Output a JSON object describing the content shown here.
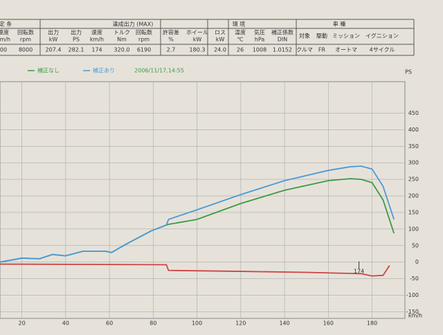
{
  "table": {
    "groups": [
      "定 条",
      "達成出力 (MAX)",
      "環 境",
      "車 種"
    ],
    "headers": [
      [
        "速度",
        "km/h"
      ],
      [
        "回転数",
        "rpm"
      ],
      [
        "出力",
        "kW"
      ],
      [
        "出力",
        "PS"
      ],
      [
        "速度",
        "km/h"
      ],
      [
        "トルク",
        "Nm"
      ],
      [
        "回転数",
        "rpm"
      ],
      [
        "許容差",
        "%"
      ],
      [
        "ホイール",
        "kW"
      ],
      [
        "ロス",
        "kW"
      ],
      [
        "温度",
        "℃"
      ],
      [
        "気圧",
        "hPa"
      ],
      [
        "補正係数",
        "DIN"
      ],
      [
        "対象"
      ],
      [
        "駆動"
      ],
      [
        "ミッション"
      ],
      [
        "イグニション"
      ]
    ],
    "row": [
      "00",
      "8000",
      "207.4",
      "282.1",
      "174",
      "320.0",
      "6190",
      "2.7",
      "180.3",
      "24.0",
      "26",
      "1008",
      "1.0152",
      "クルマ",
      "FR",
      "オートマ",
      "4サイクル"
    ]
  },
  "chart_data": {
    "type": "line",
    "subtitle": "2006/11/17,14:55",
    "x_label": "km/h",
    "y_label": "PS",
    "xlim": [
      10,
      195
    ],
    "xticks": [
      20,
      40,
      60,
      80,
      100,
      120,
      140,
      160,
      180
    ],
    "ylim": [
      -170,
      545
    ],
    "yticks": [
      -150,
      -100,
      -50,
      0,
      50,
      100,
      150,
      200,
      250,
      300,
      350,
      400,
      450
    ],
    "grid": true,
    "series": [
      {
        "name": "補正なし",
        "color": "#3a9a44",
        "x": [
          10,
          20,
          28,
          34,
          40,
          48,
          58,
          61,
          67,
          79,
          86,
          87,
          100,
          120,
          140,
          160,
          170,
          175,
          180,
          185,
          190
        ],
        "values": [
          0,
          12,
          10,
          23,
          19,
          33,
          33,
          29,
          52,
          94,
          112,
          114,
          129,
          177,
          217,
          246,
          252,
          250,
          240,
          188,
          87
        ]
      },
      {
        "name": "補正あり",
        "color": "#4a9ad6",
        "x": [
          10,
          20,
          28,
          34,
          40,
          48,
          58,
          61,
          67,
          79,
          86,
          87,
          100,
          120,
          140,
          160,
          170,
          175,
          180,
          185,
          190
        ],
        "values": [
          0,
          12,
          10,
          23,
          19,
          33,
          33,
          29,
          52,
          94,
          112,
          129,
          158,
          204,
          246,
          277,
          288,
          290,
          281,
          229,
          129
        ]
      },
      {
        "color": "#cc4444",
        "x": [
          10,
          50,
          86,
          87,
          120,
          150,
          175,
          180,
          185,
          188
        ],
        "values": [
          -6,
          -7,
          -8,
          -25,
          -28,
          -31,
          -35,
          -42,
          -40,
          -10
        ]
      }
    ],
    "annotations": [
      {
        "label": "174",
        "x": 174
      }
    ]
  }
}
